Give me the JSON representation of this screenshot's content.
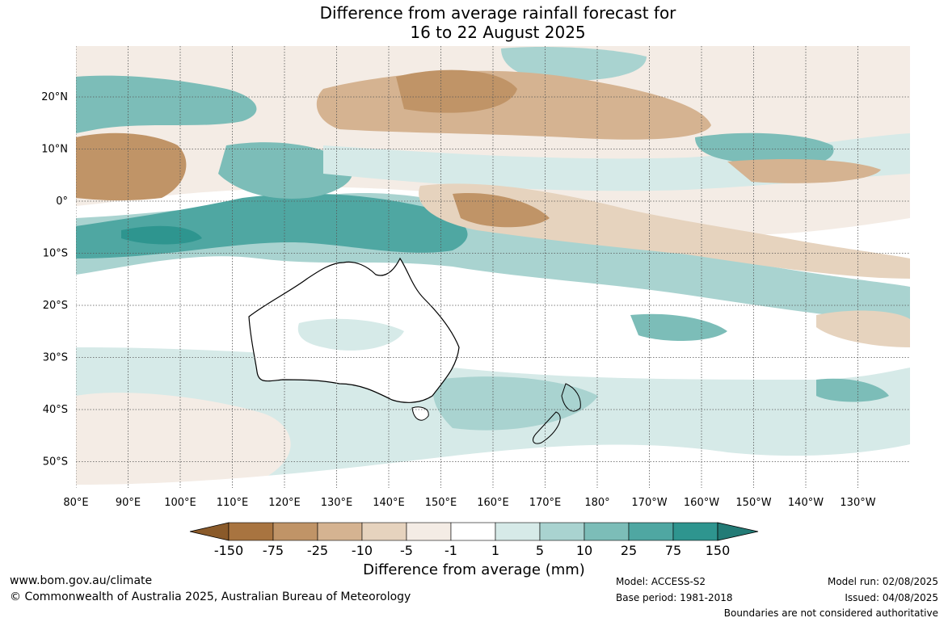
{
  "title": {
    "line1": "Difference from average rainfall forecast for",
    "line2": "16 to 22 August 2025"
  },
  "map": {
    "longitude_labels": [
      "80°E",
      "90°E",
      "100°E",
      "110°E",
      "120°E",
      "130°E",
      "140°E",
      "150°E",
      "160°E",
      "170°E",
      "180°",
      "170°W",
      "160°W",
      "150°W",
      "140°W",
      "130°W"
    ],
    "latitude_labels": [
      "20°N",
      "10°N",
      "0°",
      "10°S",
      "20°S",
      "30°S",
      "40°S",
      "50°S"
    ],
    "grid": "dotted"
  },
  "legend": {
    "title": "Difference from average (mm)",
    "ticks": [
      "-150",
      "-75",
      "-25",
      "-10",
      "-5",
      "-1",
      "1",
      "5",
      "10",
      "25",
      "75",
      "150"
    ],
    "colors": [
      "#8a5a2a",
      "#a87440",
      "#c09467",
      "#d5b391",
      "#e6d3be",
      "#f4ece5",
      "#ffffff",
      "#d6eae8",
      "#a9d3d0",
      "#7cbdb8",
      "#4fa7a2",
      "#2e958f",
      "#237b76"
    ]
  },
  "footer": {
    "website": "www.bom.gov.au/climate",
    "copyright": "© Commonwealth of Australia 2025, Australian Bureau of Meteorology",
    "model": "Model: ACCESS-S2",
    "base_period": "Base period: 1981-2018",
    "model_run": "Model run: 02/08/2025",
    "issued": "Issued: 04/08/2025",
    "disclaimer": "Boundaries are not considered authoritative"
  }
}
